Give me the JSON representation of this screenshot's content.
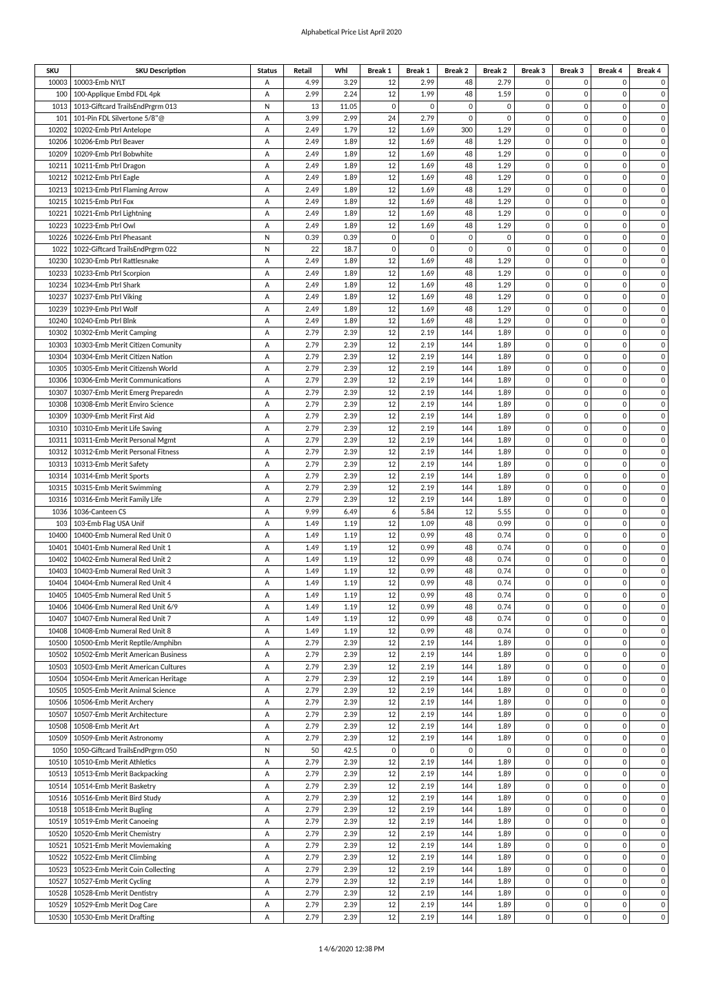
{
  "title": "Alphabetical Price List April 2020",
  "footer": "1   4/6/2020   12:38 PM",
  "columns": [
    "SKU",
    "SKU Description",
    "Status",
    "Retail",
    "Whl",
    "Break 1",
    "Break 1",
    "Break 2",
    "Break 2",
    "Break 3",
    "Break 3",
    "Break 4",
    "Break 4"
  ],
  "rows": [
    [
      "10003",
      "10003-Emb NYLT",
      "A",
      "4.99",
      "3.29",
      "12",
      "2.99",
      "48",
      "2.79",
      "0",
      "0",
      "0",
      "0"
    ],
    [
      "100",
      "100-Applique Embd FDL 4pk",
      "A",
      "2.99",
      "2.24",
      "12",
      "1.99",
      "48",
      "1.59",
      "0",
      "0",
      "0",
      "0"
    ],
    [
      "1013",
      "1013-Giftcard TrailsEndPrgrm 013",
      "N",
      "13",
      "11.05",
      "0",
      "0",
      "0",
      "0",
      "0",
      "0",
      "0",
      "0"
    ],
    [
      "101",
      "101-Pin FDL Silvertone 5/8\"@",
      "A",
      "3.99",
      "2.99",
      "24",
      "2.79",
      "0",
      "0",
      "0",
      "0",
      "0",
      "0"
    ],
    [
      "10202",
      "10202-Emb Ptrl Antelope",
      "A",
      "2.49",
      "1.79",
      "12",
      "1.69",
      "300",
      "1.29",
      "0",
      "0",
      "0",
      "0"
    ],
    [
      "10206",
      "10206-Emb Ptrl Beaver",
      "A",
      "2.49",
      "1.89",
      "12",
      "1.69",
      "48",
      "1.29",
      "0",
      "0",
      "0",
      "0"
    ],
    [
      "10209",
      "10209-Emb Ptrl Bobwhite",
      "A",
      "2.49",
      "1.89",
      "12",
      "1.69",
      "48",
      "1.29",
      "0",
      "0",
      "0",
      "0"
    ],
    [
      "10211",
      "10211-Emb Ptrl Dragon",
      "A",
      "2.49",
      "1.89",
      "12",
      "1.69",
      "48",
      "1.29",
      "0",
      "0",
      "0",
      "0"
    ],
    [
      "10212",
      "10212-Emb Ptrl Eagle",
      "A",
      "2.49",
      "1.89",
      "12",
      "1.69",
      "48",
      "1.29",
      "0",
      "0",
      "0",
      "0"
    ],
    [
      "10213",
      "10213-Emb Ptrl Flaming Arrow",
      "A",
      "2.49",
      "1.89",
      "12",
      "1.69",
      "48",
      "1.29",
      "0",
      "0",
      "0",
      "0"
    ],
    [
      "10215",
      "10215-Emb Ptrl Fox",
      "A",
      "2.49",
      "1.89",
      "12",
      "1.69",
      "48",
      "1.29",
      "0",
      "0",
      "0",
      "0"
    ],
    [
      "10221",
      "10221-Emb Ptrl Lightning",
      "A",
      "2.49",
      "1.89",
      "12",
      "1.69",
      "48",
      "1.29",
      "0",
      "0",
      "0",
      "0"
    ],
    [
      "10223",
      "10223-Emb Ptrl Owl",
      "A",
      "2.49",
      "1.89",
      "12",
      "1.69",
      "48",
      "1.29",
      "0",
      "0",
      "0",
      "0"
    ],
    [
      "10226",
      "10226-Emb Ptrl Pheasant",
      "N",
      "0.39",
      "0.39",
      "0",
      "0",
      "0",
      "0",
      "0",
      "0",
      "0",
      "0"
    ],
    [
      "1022",
      "1022-Giftcard TrailsEndPrgrm 022",
      "N",
      "22",
      "18.7",
      "0",
      "0",
      "0",
      "0",
      "0",
      "0",
      "0",
      "0"
    ],
    [
      "10230",
      "10230-Emb Ptrl Rattlesnake",
      "A",
      "2.49",
      "1.89",
      "12",
      "1.69",
      "48",
      "1.29",
      "0",
      "0",
      "0",
      "0"
    ],
    [
      "10233",
      "10233-Emb Ptrl Scorpion",
      "A",
      "2.49",
      "1.89",
      "12",
      "1.69",
      "48",
      "1.29",
      "0",
      "0",
      "0",
      "0"
    ],
    [
      "10234",
      "10234-Emb Ptrl Shark",
      "A",
      "2.49",
      "1.89",
      "12",
      "1.69",
      "48",
      "1.29",
      "0",
      "0",
      "0",
      "0"
    ],
    [
      "10237",
      "10237-Emb Ptrl Viking",
      "A",
      "2.49",
      "1.89",
      "12",
      "1.69",
      "48",
      "1.29",
      "0",
      "0",
      "0",
      "0"
    ],
    [
      "10239",
      "10239-Emb Ptrl Wolf",
      "A",
      "2.49",
      "1.89",
      "12",
      "1.69",
      "48",
      "1.29",
      "0",
      "0",
      "0",
      "0"
    ],
    [
      "10240",
      "10240-Emb Ptrl Blnk",
      "A",
      "2.49",
      "1.89",
      "12",
      "1.69",
      "48",
      "1.29",
      "0",
      "0",
      "0",
      "0"
    ],
    [
      "10302",
      "10302-Emb Merit Camping",
      "A",
      "2.79",
      "2.39",
      "12",
      "2.19",
      "144",
      "1.89",
      "0",
      "0",
      "0",
      "0"
    ],
    [
      "10303",
      "10303-Emb Merit Citizen Comunity",
      "A",
      "2.79",
      "2.39",
      "12",
      "2.19",
      "144",
      "1.89",
      "0",
      "0",
      "0",
      "0"
    ],
    [
      "10304",
      "10304-Emb Merit Citizen Nation",
      "A",
      "2.79",
      "2.39",
      "12",
      "2.19",
      "144",
      "1.89",
      "0",
      "0",
      "0",
      "0"
    ],
    [
      "10305",
      "10305-Emb Merit Citizensh World",
      "A",
      "2.79",
      "2.39",
      "12",
      "2.19",
      "144",
      "1.89",
      "0",
      "0",
      "0",
      "0"
    ],
    [
      "10306",
      "10306-Emb Merit Communications",
      "A",
      "2.79",
      "2.39",
      "12",
      "2.19",
      "144",
      "1.89",
      "0",
      "0",
      "0",
      "0"
    ],
    [
      "10307",
      "10307-Emb Merit Emerg Preparedn",
      "A",
      "2.79",
      "2.39",
      "12",
      "2.19",
      "144",
      "1.89",
      "0",
      "0",
      "0",
      "0"
    ],
    [
      "10308",
      "10308-Emb Merit Enviro Science",
      "A",
      "2.79",
      "2.39",
      "12",
      "2.19",
      "144",
      "1.89",
      "0",
      "0",
      "0",
      "0"
    ],
    [
      "10309",
      "10309-Emb Merit First Aid",
      "A",
      "2.79",
      "2.39",
      "12",
      "2.19",
      "144",
      "1.89",
      "0",
      "0",
      "0",
      "0"
    ],
    [
      "10310",
      "10310-Emb Merit Life Saving",
      "A",
      "2.79",
      "2.39",
      "12",
      "2.19",
      "144",
      "1.89",
      "0",
      "0",
      "0",
      "0"
    ],
    [
      "10311",
      "10311-Emb Merit Personal Mgmt",
      "A",
      "2.79",
      "2.39",
      "12",
      "2.19",
      "144",
      "1.89",
      "0",
      "0",
      "0",
      "0"
    ],
    [
      "10312",
      "10312-Emb Merit Personal Fitness",
      "A",
      "2.79",
      "2.39",
      "12",
      "2.19",
      "144",
      "1.89",
      "0",
      "0",
      "0",
      "0"
    ],
    [
      "10313",
      "10313-Emb Merit Safety",
      "A",
      "2.79",
      "2.39",
      "12",
      "2.19",
      "144",
      "1.89",
      "0",
      "0",
      "0",
      "0"
    ],
    [
      "10314",
      "10314-Emb Merit Sports",
      "A",
      "2.79",
      "2.39",
      "12",
      "2.19",
      "144",
      "1.89",
      "0",
      "0",
      "0",
      "0"
    ],
    [
      "10315",
      "10315-Emb Merit Swimming",
      "A",
      "2.79",
      "2.39",
      "12",
      "2.19",
      "144",
      "1.89",
      "0",
      "0",
      "0",
      "0"
    ],
    [
      "10316",
      "10316-Emb Merit Family Life",
      "A",
      "2.79",
      "2.39",
      "12",
      "2.19",
      "144",
      "1.89",
      "0",
      "0",
      "0",
      "0"
    ],
    [
      "1036",
      "1036-Canteen CS",
      "A",
      "9.99",
      "6.49",
      "6",
      "5.84",
      "12",
      "5.55",
      "0",
      "0",
      "0",
      "0"
    ],
    [
      "103",
      "103-Emb Flag USA Unif",
      "A",
      "1.49",
      "1.19",
      "12",
      "1.09",
      "48",
      "0.99",
      "0",
      "0",
      "0",
      "0"
    ],
    [
      "10400",
      "10400-Emb Numeral Red Unit 0",
      "A",
      "1.49",
      "1.19",
      "12",
      "0.99",
      "48",
      "0.74",
      "0",
      "0",
      "0",
      "0"
    ],
    [
      "10401",
      "10401-Emb Numeral Red Unit 1",
      "A",
      "1.49",
      "1.19",
      "12",
      "0.99",
      "48",
      "0.74",
      "0",
      "0",
      "0",
      "0"
    ],
    [
      "10402",
      "10402-Emb Numeral Red Unit 2",
      "A",
      "1.49",
      "1.19",
      "12",
      "0.99",
      "48",
      "0.74",
      "0",
      "0",
      "0",
      "0"
    ],
    [
      "10403",
      "10403-Emb Numeral Red Unit 3",
      "A",
      "1.49",
      "1.19",
      "12",
      "0.99",
      "48",
      "0.74",
      "0",
      "0",
      "0",
      "0"
    ],
    [
      "10404",
      "10404-Emb Numeral Red Unit 4",
      "A",
      "1.49",
      "1.19",
      "12",
      "0.99",
      "48",
      "0.74",
      "0",
      "0",
      "0",
      "0"
    ],
    [
      "10405",
      "10405-Emb Numeral Red Unit 5",
      "A",
      "1.49",
      "1.19",
      "12",
      "0.99",
      "48",
      "0.74",
      "0",
      "0",
      "0",
      "0"
    ],
    [
      "10406",
      "10406-Emb Numeral Red Unit 6/9",
      "A",
      "1.49",
      "1.19",
      "12",
      "0.99",
      "48",
      "0.74",
      "0",
      "0",
      "0",
      "0"
    ],
    [
      "10407",
      "10407-Emb Numeral Red Unit 7",
      "A",
      "1.49",
      "1.19",
      "12",
      "0.99",
      "48",
      "0.74",
      "0",
      "0",
      "0",
      "0"
    ],
    [
      "10408",
      "10408-Emb Numeral Red Unit 8",
      "A",
      "1.49",
      "1.19",
      "12",
      "0.99",
      "48",
      "0.74",
      "0",
      "0",
      "0",
      "0"
    ],
    [
      "10500",
      "10500-Emb Merit Reptile/Amphibn",
      "A",
      "2.79",
      "2.39",
      "12",
      "2.19",
      "144",
      "1.89",
      "0",
      "0",
      "0",
      "0"
    ],
    [
      "10502",
      "10502-Emb Merit American Business",
      "A",
      "2.79",
      "2.39",
      "12",
      "2.19",
      "144",
      "1.89",
      "0",
      "0",
      "0",
      "0"
    ],
    [
      "10503",
      "10503-Emb Merit American Cultures",
      "A",
      "2.79",
      "2.39",
      "12",
      "2.19",
      "144",
      "1.89",
      "0",
      "0",
      "0",
      "0"
    ],
    [
      "10504",
      "10504-Emb Merit American Heritage",
      "A",
      "2.79",
      "2.39",
      "12",
      "2.19",
      "144",
      "1.89",
      "0",
      "0",
      "0",
      "0"
    ],
    [
      "10505",
      "10505-Emb Merit Animal Science",
      "A",
      "2.79",
      "2.39",
      "12",
      "2.19",
      "144",
      "1.89",
      "0",
      "0",
      "0",
      "0"
    ],
    [
      "10506",
      "10506-Emb Merit Archery",
      "A",
      "2.79",
      "2.39",
      "12",
      "2.19",
      "144",
      "1.89",
      "0",
      "0",
      "0",
      "0"
    ],
    [
      "10507",
      "10507-Emb Merit Architecture",
      "A",
      "2.79",
      "2.39",
      "12",
      "2.19",
      "144",
      "1.89",
      "0",
      "0",
      "0",
      "0"
    ],
    [
      "10508",
      "10508-Emb Merit Art",
      "A",
      "2.79",
      "2.39",
      "12",
      "2.19",
      "144",
      "1.89",
      "0",
      "0",
      "0",
      "0"
    ],
    [
      "10509",
      "10509-Emb Merit Astronomy",
      "A",
      "2.79",
      "2.39",
      "12",
      "2.19",
      "144",
      "1.89",
      "0",
      "0",
      "0",
      "0"
    ],
    [
      "1050",
      "1050-Giftcard TrailsEndPrgrm 050",
      "N",
      "50",
      "42.5",
      "0",
      "0",
      "0",
      "0",
      "0",
      "0",
      "0",
      "0"
    ],
    [
      "10510",
      "10510-Emb Merit Athletics",
      "A",
      "2.79",
      "2.39",
      "12",
      "2.19",
      "144",
      "1.89",
      "0",
      "0",
      "0",
      "0"
    ],
    [
      "10513",
      "10513-Emb Merit Backpacking",
      "A",
      "2.79",
      "2.39",
      "12",
      "2.19",
      "144",
      "1.89",
      "0",
      "0",
      "0",
      "0"
    ],
    [
      "10514",
      "10514-Emb Merit Basketry",
      "A",
      "2.79",
      "2.39",
      "12",
      "2.19",
      "144",
      "1.89",
      "0",
      "0",
      "0",
      "0"
    ],
    [
      "10516",
      "10516-Emb Merit Bird Study",
      "A",
      "2.79",
      "2.39",
      "12",
      "2.19",
      "144",
      "1.89",
      "0",
      "0",
      "0",
      "0"
    ],
    [
      "10518",
      "10518-Emb Merit Bugling",
      "A",
      "2.79",
      "2.39",
      "12",
      "2.19",
      "144",
      "1.89",
      "0",
      "0",
      "0",
      "0"
    ],
    [
      "10519",
      "10519-Emb Merit Canoeing",
      "A",
      "2.79",
      "2.39",
      "12",
      "2.19",
      "144",
      "1.89",
      "0",
      "0",
      "0",
      "0"
    ],
    [
      "10520",
      "10520-Emb Merit Chemistry",
      "A",
      "2.79",
      "2.39",
      "12",
      "2.19",
      "144",
      "1.89",
      "0",
      "0",
      "0",
      "0"
    ],
    [
      "10521",
      "10521-Emb Merit Moviemaking",
      "A",
      "2.79",
      "2.39",
      "12",
      "2.19",
      "144",
      "1.89",
      "0",
      "0",
      "0",
      "0"
    ],
    [
      "10522",
      "10522-Emb Merit Climbing",
      "A",
      "2.79",
      "2.39",
      "12",
      "2.19",
      "144",
      "1.89",
      "0",
      "0",
      "0",
      "0"
    ],
    [
      "10523",
      "10523-Emb Merit Coin Collecting",
      "A",
      "2.79",
      "2.39",
      "12",
      "2.19",
      "144",
      "1.89",
      "0",
      "0",
      "0",
      "0"
    ],
    [
      "10527",
      "10527-Emb Merit Cycling",
      "A",
      "2.79",
      "2.39",
      "12",
      "2.19",
      "144",
      "1.89",
      "0",
      "0",
      "0",
      "0"
    ],
    [
      "10528",
      "10528-Emb Merit Dentistry",
      "A",
      "2.79",
      "2.39",
      "12",
      "2.19",
      "144",
      "1.89",
      "0",
      "0",
      "0",
      "0"
    ],
    [
      "10529",
      "10529-Emb Merit Dog Care",
      "A",
      "2.79",
      "2.39",
      "12",
      "2.19",
      "144",
      "1.89",
      "0",
      "0",
      "0",
      "0"
    ],
    [
      "10530",
      "10530-Emb Merit Drafting",
      "A",
      "2.79",
      "2.39",
      "12",
      "2.19",
      "144",
      "1.89",
      "0",
      "0",
      "0",
      "0"
    ]
  ]
}
